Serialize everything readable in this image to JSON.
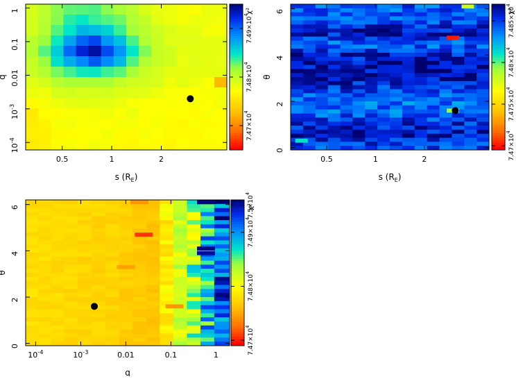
{
  "chart_data": [
    {
      "type": "heatmap",
      "id": "panel-s-q",
      "title": "",
      "xlabel": "s (R_E)",
      "ylabel": "q",
      "xscale": "log",
      "yscale": "log",
      "xlim": [
        0.3,
        5.0
      ],
      "ylim": [
        6e-05,
        1.3
      ],
      "xtick_values": [
        0.5,
        1,
        2
      ],
      "xtick_labels": [
        "0.5",
        "1",
        "2"
      ],
      "ytick_values": [
        0.0001,
        0.001,
        0.01,
        0.1,
        1
      ],
      "ytick_labels": [
        "10^-4",
        "10^-3",
        "0.01",
        "0.1",
        "1"
      ],
      "colorbar_label": "χ²",
      "colorbar_range": [
        74650,
        74950
      ],
      "colorbar_tick_values": [
        74700,
        74800,
        74900
      ],
      "colorbar_tick_labels": [
        "7.47×10^4",
        "7.48×10^4",
        "7.49×10^4"
      ],
      "best_fit": {
        "s": 3.0,
        "q": 0.002
      },
      "cells": [
        [
          74790,
          74802,
          74815,
          74825,
          74830,
          74828,
          74822,
          74812,
          74800,
          74792,
          74786,
          74781,
          74778,
          74776,
          74775,
          74776
        ],
        [
          74792,
          74805,
          74820,
          74835,
          74840,
          74838,
          74832,
          74820,
          74805,
          74795,
          74787,
          74782,
          74778,
          74777,
          74776,
          74777
        ],
        [
          74795,
          74810,
          74830,
          74850,
          74865,
          74860,
          74850,
          74835,
          74815,
          74800,
          74790,
          74784,
          74780,
          74778,
          74777,
          74778
        ],
        [
          74800,
          74820,
          74845,
          74875,
          74900,
          74905,
          74880,
          74860,
          74830,
          74810,
          74795,
          74787,
          74782,
          74780,
          74779,
          74780
        ],
        [
          74805,
          74828,
          74860,
          74895,
          74925,
          74935,
          74910,
          74880,
          74845,
          74818,
          74800,
          74790,
          74784,
          74781,
          74780,
          74781
        ],
        [
          74802,
          74820,
          74845,
          74870,
          74890,
          74900,
          74885,
          74860,
          74830,
          74810,
          74796,
          74788,
          74783,
          74780,
          74779,
          74780
        ],
        [
          74795,
          74808,
          74822,
          74835,
          74842,
          74845,
          74838,
          74825,
          74810,
          74800,
          74790,
          74784,
          74780,
          74778,
          74777,
          74778
        ],
        [
          74785,
          74795,
          74802,
          74806,
          74808,
          74810,
          74808,
          74804,
          74798,
          74792,
          74786,
          74782,
          74779,
          74777,
          74776,
          74720
        ],
        [
          74775,
          74780,
          74785,
          74788,
          74790,
          74790,
          74789,
          74786,
          74782,
          74779,
          74777,
          74776,
          74775,
          74775,
          74774,
          74775
        ],
        [
          74765,
          74772,
          74776,
          74778,
          74779,
          74780,
          74779,
          74778,
          74776,
          74775,
          74774,
          74773,
          74773,
          74773,
          74773,
          74774
        ],
        [
          74760,
          74768,
          74772,
          74774,
          74775,
          74776,
          74775,
          74774,
          74773,
          74772,
          74772,
          74771,
          74771,
          74771,
          74771,
          74772
        ],
        [
          74758,
          74766,
          74770,
          74772,
          74773,
          74774,
          74773,
          74772,
          74771,
          74771,
          74770,
          74770,
          74770,
          74770,
          74770,
          74771
        ],
        [
          74757,
          74765,
          74769,
          74771,
          74772,
          74773,
          74772,
          74771,
          74770,
          74770,
          74769,
          74769,
          74769,
          74769,
          74769,
          74770
        ],
        [
          74756,
          74764,
          74768,
          74770,
          74771,
          74772,
          74771,
          74770,
          74769,
          74769,
          74768,
          74768,
          74768,
          74768,
          74768,
          74769
        ]
      ]
    },
    {
      "type": "heatmap",
      "id": "panel-s-theta",
      "title": "",
      "xlabel": "s (R_E)",
      "ylabel": "θ",
      "xscale": "log",
      "yscale": "linear",
      "xlim": [
        0.3,
        5.0
      ],
      "ylim": [
        -0.1,
        6.2
      ],
      "xtick_values": [
        0.5,
        1,
        2
      ],
      "xtick_labels": [
        "0.5",
        "1",
        "2"
      ],
      "ytick_values": [
        0,
        2,
        4,
        6
      ],
      "ytick_labels": [
        "0",
        "2",
        "4",
        "6"
      ],
      "colorbar_label": "χ²",
      "colorbar_range": [
        74695,
        74870
      ],
      "colorbar_tick_values": [
        74700,
        74750,
        74800,
        74850
      ],
      "colorbar_tick_labels": [
        "7.47×10^4",
        "7.475×10^4",
        "7.48×10^4",
        "7.485×10^4"
      ],
      "best_fit": {
        "s": 3.1,
        "theta": 1.6
      },
      "theta_bands": [
        {
          "theta": 0.0,
          "level": 74845
        },
        {
          "theta": 0.5,
          "level": 74858
        },
        {
          "theta": 1.0,
          "level": 74852
        },
        {
          "theta": 1.5,
          "level": 74840
        },
        {
          "theta": 2.0,
          "level": 74835
        },
        {
          "theta": 2.5,
          "level": 74848
        },
        {
          "theta": 3.0,
          "level": 74860
        },
        {
          "theta": 3.5,
          "level": 74862
        },
        {
          "theta": 4.0,
          "level": 74855
        },
        {
          "theta": 4.5,
          "level": 74838
        },
        {
          "theta": 5.0,
          "level": 74860
        },
        {
          "theta": 5.5,
          "level": 74845
        },
        {
          "theta": 6.0,
          "level": 74842
        }
      ],
      "anomalies": [
        {
          "s": 3.0,
          "theta": 4.75,
          "value": 74700
        },
        {
          "s": 3.0,
          "theta": 1.6,
          "value": 74790
        },
        {
          "s": 0.35,
          "theta": 0.3,
          "value": 74810
        },
        {
          "s": 3.7,
          "theta": 6.1,
          "value": 74780
        }
      ]
    },
    {
      "type": "heatmap",
      "id": "panel-q-theta",
      "title": "",
      "xlabel": "q",
      "ylabel": "θ",
      "xscale": "log",
      "yscale": "linear",
      "xlim": [
        6e-05,
        2.0
      ],
      "ylim": [
        -0.1,
        6.2
      ],
      "xtick_values": [
        0.0001,
        0.001,
        0.01,
        0.1,
        1
      ],
      "xtick_labels": [
        "10^-4",
        "10^-3",
        "0.01",
        "0.1",
        "1"
      ],
      "ytick_values": [
        0,
        2,
        4,
        6
      ],
      "ytick_labels": [
        "0",
        "2",
        "4",
        "6"
      ],
      "colorbar_label": "χ²",
      "colorbar_range": [
        74690,
        74960
      ],
      "colorbar_tick_values": [
        74700,
        74800,
        74900,
        74950
      ],
      "colorbar_tick_labels": [
        "7.47×10^4",
        "7.48×10^4",
        "7.49×10^4",
        "7.5×10^4"
      ],
      "best_fit": {
        "q": 0.002,
        "theta": 1.6
      },
      "q_columns": [
        8e-05,
        0.00016,
        0.0003,
        0.0006,
        0.0012,
        0.0025,
        0.005,
        0.01,
        0.02,
        0.04,
        0.08,
        0.16,
        0.32,
        0.64,
        1.3
      ],
      "column_levels": [
        74778,
        74776,
        74775,
        74774,
        74773,
        74772,
        74771,
        74768,
        74765,
        74763,
        74790,
        74820,
        74835,
        74880,
        74920
      ],
      "anomalies": [
        {
          "q": 0.025,
          "theta": 4.7,
          "value": 74705
        },
        {
          "q": 0.12,
          "theta": 1.6,
          "value": 74740
        },
        {
          "q": 0.02,
          "theta": 6.1,
          "value": 74740
        },
        {
          "q": 0.01,
          "theta": 3.3,
          "value": 74745
        },
        {
          "q": 0.6,
          "theta": 6.1,
          "value": 74955
        },
        {
          "q": 0.6,
          "theta": 4.1,
          "value": 74955
        },
        {
          "q": 0.6,
          "theta": 3.9,
          "value": 74950
        }
      ]
    }
  ]
}
